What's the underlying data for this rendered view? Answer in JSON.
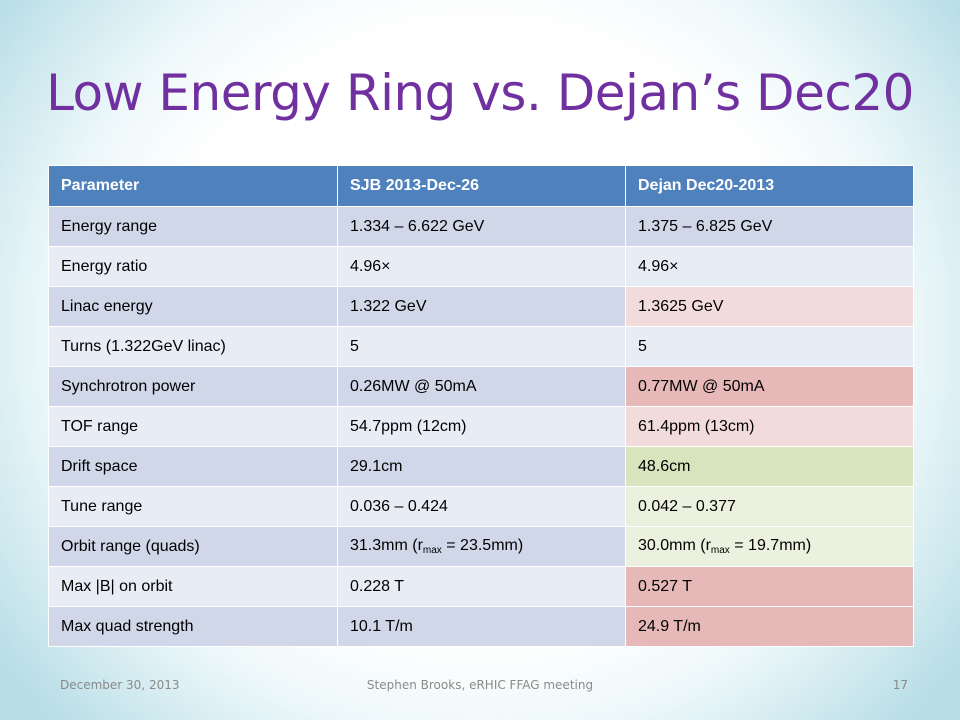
{
  "slide": {
    "title": "Low Energy Ring vs. Dejan’s Dec20",
    "footer": {
      "date": "December 30, 2013",
      "center": "Stephen Brooks, eRHIC FFAG meeting",
      "page": "17"
    }
  },
  "table": {
    "headers": [
      "Parameter",
      "SJB 2013-Dec-26",
      "Dejan Dec20-2013"
    ],
    "rows": [
      {
        "param": "Energy range",
        "sjb": "1.334 – 6.622 GeV",
        "dejan": "1.375 – 6.825 GeV"
      },
      {
        "param": "Energy ratio",
        "sjb": "4.96×",
        "dejan": "4.96×"
      },
      {
        "param": "Linac energy",
        "sjb": "1.322 GeV",
        "dejan": "1.3625 GeV"
      },
      {
        "param": "Turns (1.322GeV linac)",
        "sjb": "5",
        "dejan": "5"
      },
      {
        "param": "Synchrotron power",
        "sjb": "0.26MW @ 50mA",
        "dejan": "0.77MW @ 50mA"
      },
      {
        "param": "TOF range",
        "sjb": "54.7ppm (12cm)",
        "dejan": "61.4ppm (13cm)"
      },
      {
        "param": "Drift space",
        "sjb": "29.1cm",
        "dejan": "48.6cm"
      },
      {
        "param": "Tune range",
        "sjb": "0.036 – 0.424",
        "dejan": "0.042 – 0.377"
      },
      {
        "param": "Orbit range (quads)",
        "sjb": {
          "pre": "31.3mm (r",
          "sub": "max",
          "post": " = 23.5mm)"
        },
        "dejan": {
          "pre": "30.0mm (r",
          "sub": "max",
          "post": " = 19.7mm)"
        }
      },
      {
        "param": "Max |B| on orbit",
        "sjb": "0.228 T",
        "dejan": "0.527 T"
      },
      {
        "param": "Max quad strength",
        "sjb": "10.1 T/m",
        "dejan": "24.9 T/m"
      }
    ]
  },
  "colors": {
    "title": "#7030a0",
    "header_bg": "#4f81bd",
    "row_odd": "#cfd7e8",
    "row_even": "#e8ecf4",
    "highlight_pink": "#f2dcdb",
    "highlight_red": "#e6b9b8",
    "highlight_green": "#d7e4bd",
    "highlight_lightgreen": "#ebf1de"
  }
}
